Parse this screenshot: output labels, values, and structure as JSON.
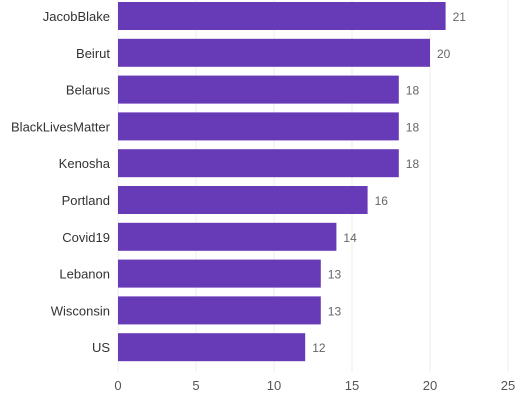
{
  "chart_data": {
    "type": "bar",
    "orientation": "horizontal",
    "categories": [
      "JacobBlake",
      "Beirut",
      "Belarus",
      "BlackLivesMatter",
      "Kenosha",
      "Portland",
      "Covid19",
      "Lebanon",
      "Wisconsin",
      "US"
    ],
    "values": [
      21,
      20,
      18,
      18,
      18,
      16,
      14,
      13,
      13,
      12
    ],
    "xlim": [
      0,
      25
    ],
    "xticks": [
      0,
      5,
      10,
      15,
      20,
      25
    ],
    "xlabel": "",
    "ylabel": "",
    "title": "",
    "grid": true,
    "legend": "none",
    "colors": {
      "bar": "#673ab7",
      "grid": "#ececec",
      "label_text": "#333333",
      "value_text": "#666666",
      "tick_text": "#555555"
    }
  }
}
